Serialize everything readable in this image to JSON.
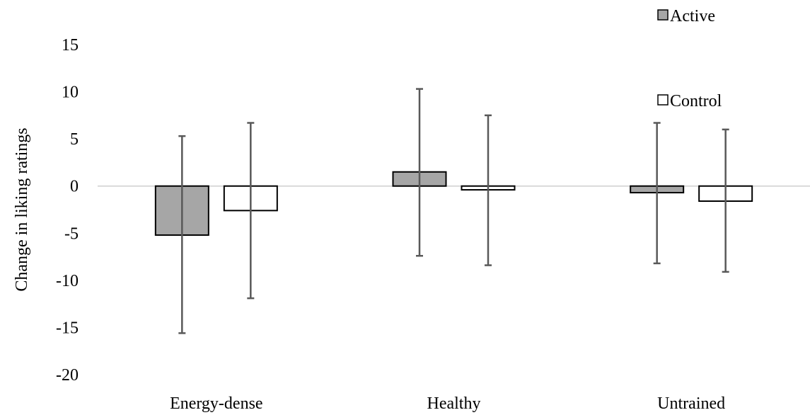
{
  "chart_data": {
    "type": "bar",
    "title": "",
    "xlabel": "",
    "ylabel": "Change in liking ratings",
    "ylim": [
      -20,
      15
    ],
    "yticks": [
      "15",
      "10",
      "5",
      "0",
      "-5",
      "-10",
      "-15",
      "-20"
    ],
    "categories": [
      "Energy-dense",
      "Healthy",
      "Untrained"
    ],
    "series": [
      {
        "name": "Active",
        "color": "#a6a6a6",
        "values": [
          -5.2,
          1.5,
          -0.7
        ],
        "error_low": [
          -15.6,
          -7.4,
          -8.2
        ],
        "error_high": [
          5.3,
          10.3,
          6.7
        ]
      },
      {
        "name": "Control",
        "color": "#ffffff",
        "values": [
          -2.6,
          -0.4,
          -1.6
        ],
        "error_low": [
          -11.9,
          -8.4,
          -9.1
        ],
        "error_high": [
          6.7,
          7.5,
          6.0
        ]
      }
    ],
    "grid": false,
    "legend": "top-right",
    "zero_line_color": "#d9d9d9",
    "error_bar_color": "#595959"
  }
}
